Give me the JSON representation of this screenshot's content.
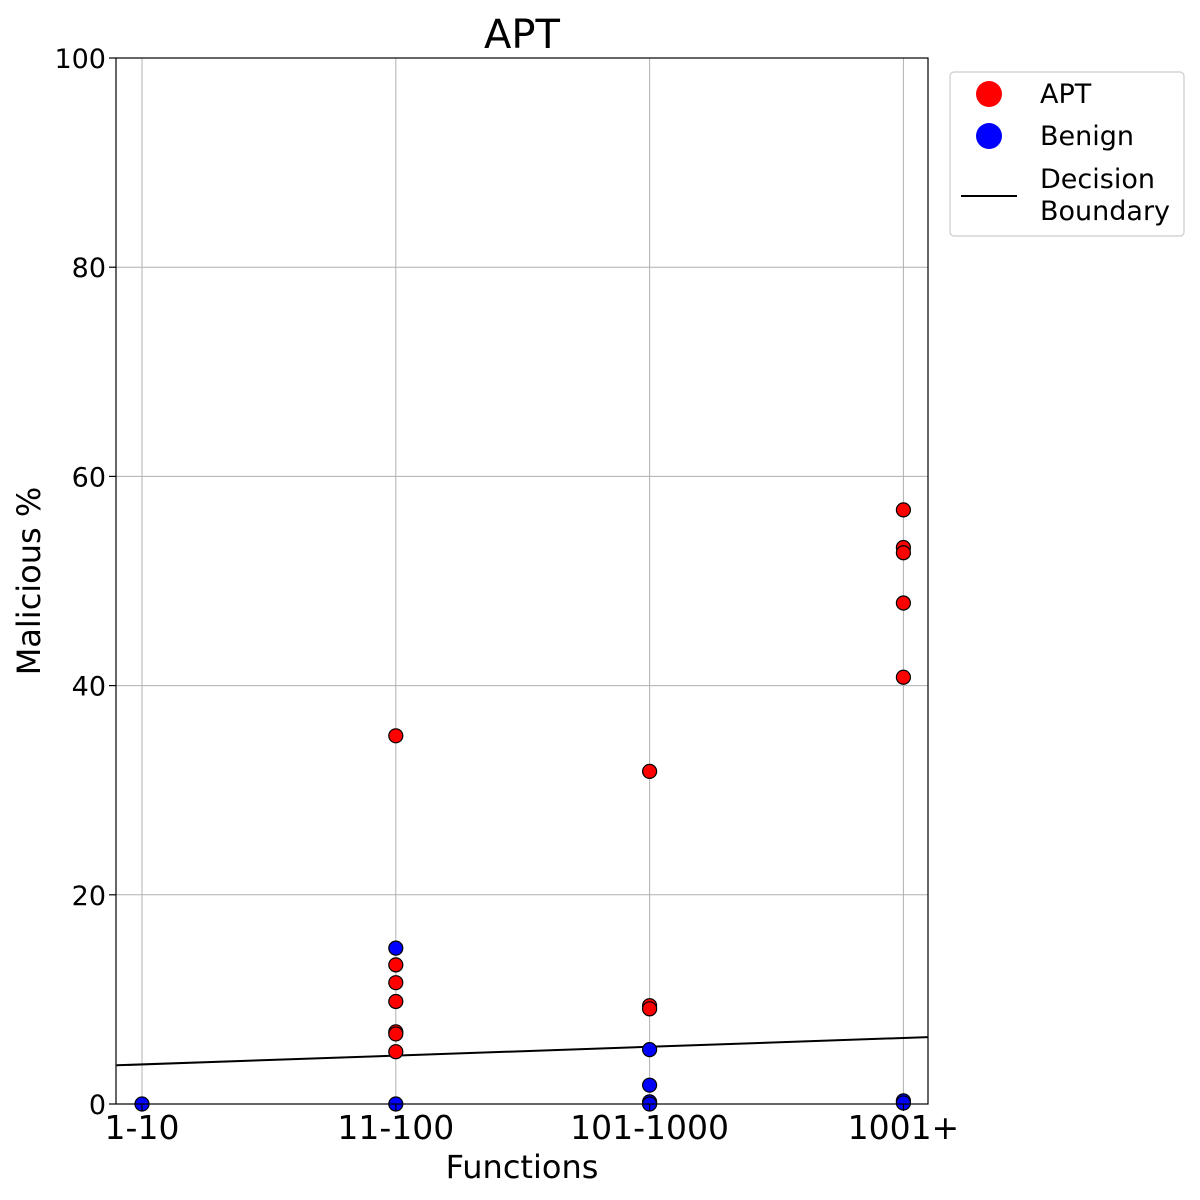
{
  "chart_data": {
    "type": "scatter",
    "title": "APT",
    "xlabel": "Functions",
    "ylabel": "Malicious %",
    "categories": [
      "1-10",
      "11-100",
      "101-1000",
      "1001+"
    ],
    "ylim": [
      0,
      100
    ],
    "yticks": [
      0,
      20,
      40,
      60,
      80,
      100
    ],
    "grid": true,
    "legend_position": "outside-top-right",
    "series": [
      {
        "name": "APT",
        "color": "#ff0000",
        "points": [
          {
            "x": "11-100",
            "y": 35.2
          },
          {
            "x": "11-100",
            "y": 13.3
          },
          {
            "x": "11-100",
            "y": 11.6
          },
          {
            "x": "11-100",
            "y": 9.8
          },
          {
            "x": "11-100",
            "y": 6.9
          },
          {
            "x": "11-100",
            "y": 6.7
          },
          {
            "x": "11-100",
            "y": 5.0
          },
          {
            "x": "101-1000",
            "y": 31.8
          },
          {
            "x": "101-1000",
            "y": 9.4
          },
          {
            "x": "101-1000",
            "y": 9.1
          },
          {
            "x": "1001+",
            "y": 56.8
          },
          {
            "x": "1001+",
            "y": 53.2
          },
          {
            "x": "1001+",
            "y": 52.7
          },
          {
            "x": "1001+",
            "y": 47.9
          },
          {
            "x": "1001+",
            "y": 40.8
          }
        ]
      },
      {
        "name": "Benign",
        "color": "#0000ff",
        "points": [
          {
            "x": "1-10",
            "y": 0.0
          },
          {
            "x": "11-100",
            "y": 14.9
          },
          {
            "x": "11-100",
            "y": 0.0
          },
          {
            "x": "101-1000",
            "y": 5.2
          },
          {
            "x": "101-1000",
            "y": 1.8
          },
          {
            "x": "101-1000",
            "y": 0.2
          },
          {
            "x": "101-1000",
            "y": 0.0
          },
          {
            "x": "1001+",
            "y": 0.3
          },
          {
            "x": "1001+",
            "y": 0.1
          }
        ]
      }
    ],
    "decision_boundary": {
      "name": "Decision Boundary",
      "color": "#000000",
      "from": {
        "x": -0.1,
        "y": 3.7
      },
      "to": {
        "x": 3.1,
        "y": 6.4
      }
    },
    "legend": [
      {
        "label": "APT",
        "color": "#ff0000",
        "kind": "marker"
      },
      {
        "label": "Benign",
        "color": "#0000ff",
        "kind": "marker"
      },
      {
        "label": "Decision\nBoundary",
        "color": "#000000",
        "kind": "line"
      }
    ]
  }
}
